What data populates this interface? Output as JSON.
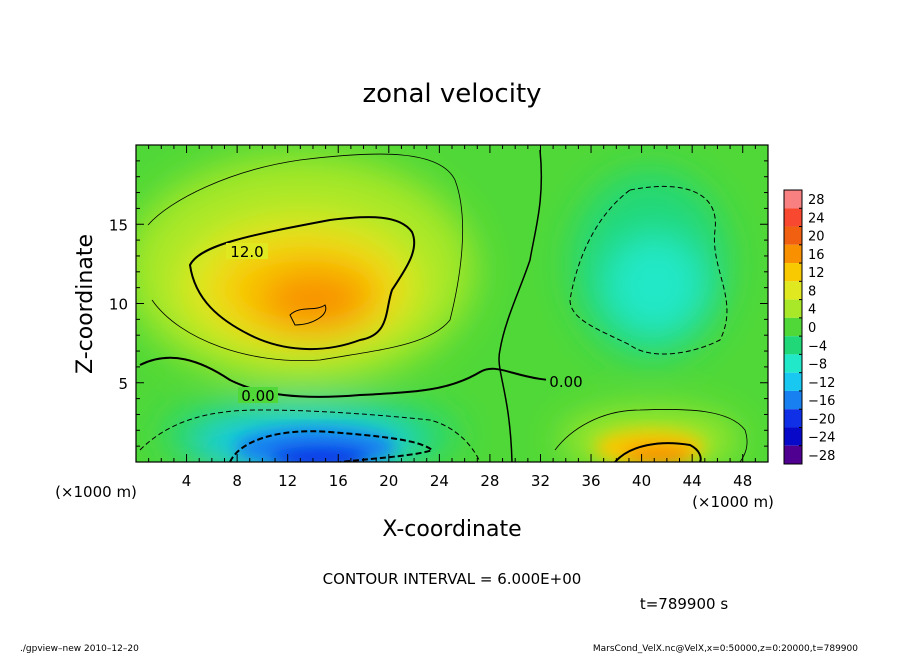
{
  "chart_data": {
    "type": "heatmap",
    "title": "zonal velocity",
    "xlabel": "X-coordinate",
    "ylabel": "Z-coordinate",
    "x_unit": "(×1000 m)",
    "y_unit": "(×1000 m)",
    "xlim": [
      0,
      50
    ],
    "ylim": [
      0,
      20
    ],
    "x_ticks": [
      "4",
      "8",
      "12",
      "16",
      "20",
      "24",
      "28",
      "32",
      "36",
      "40",
      "44",
      "48"
    ],
    "y_ticks": [
      "5",
      "10",
      "15"
    ],
    "colorbar": {
      "labels": [
        "28",
        "24",
        "20",
        "16",
        "12",
        "8",
        "4",
        "0",
        "−4",
        "−8",
        "−12",
        "−16",
        "−20",
        "−24",
        "−28"
      ],
      "colors": [
        "#f88080",
        "#f84830",
        "#f06010",
        "#f89000",
        "#f8c800",
        "#e0e820",
        "#a8e828",
        "#50d838",
        "#20d878",
        "#20e8c8",
        "#18c8f0",
        "#1880f0",
        "#1030e8",
        "#0808c8",
        "#500090"
      ]
    },
    "contour_labels": [
      "12.0",
      "0.00",
      "0.00"
    ],
    "contour_interval": "CONTOUR INTERVAL = 6.000E+00",
    "time": "t=789900 s",
    "footer_left": "./gpview–new   2010–12–20",
    "footer_right": "MarsCond_VelX.nc@VelX,x=0:50000,z=0:20000,t=789900"
  }
}
